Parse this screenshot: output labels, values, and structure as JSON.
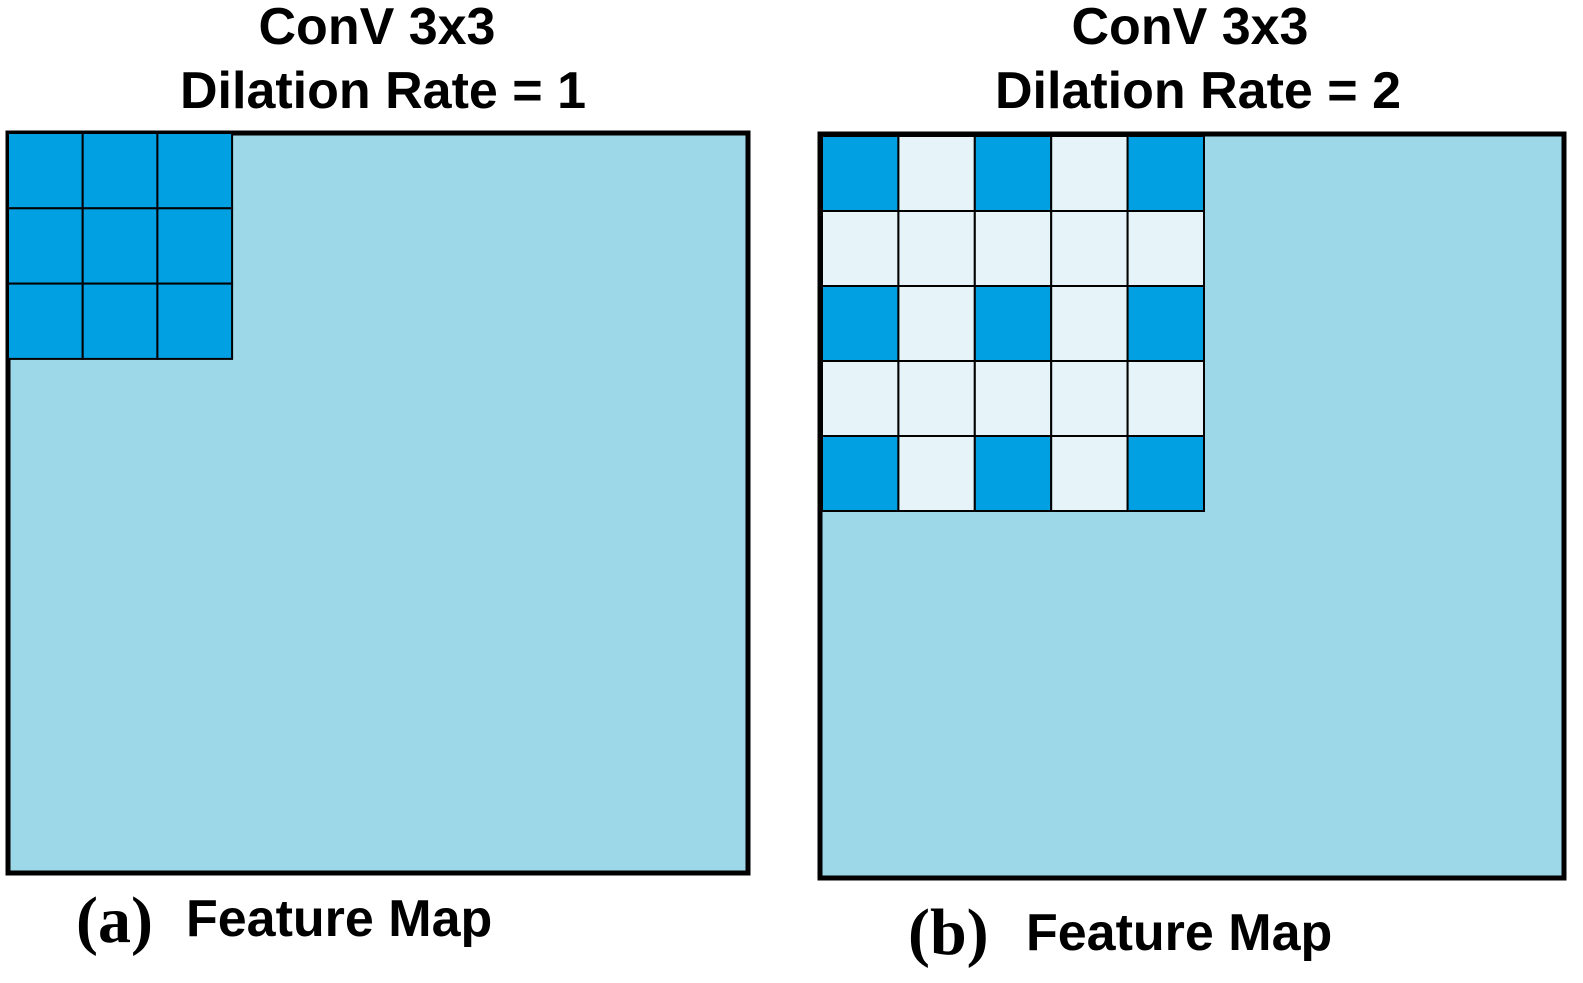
{
  "colors": {
    "feature_map": "#9dd8e9",
    "kernel_active": "#00a0e3",
    "kernel_inactive": "#e6f4fa",
    "outline": "#000000"
  },
  "panels": [
    {
      "title_line1": "ConV 3x3",
      "title_line2": "Dilation Rate = 1",
      "caption_letter": "(a)",
      "caption_text": "Feature Map",
      "dilation_rate": 1,
      "kernel_size": 3
    },
    {
      "title_line1": "ConV 3x3",
      "title_line2": "Dilation Rate = 2",
      "caption_letter": "(b)",
      "caption_text": "Feature Map",
      "dilation_rate": 2,
      "kernel_size": 3
    }
  ]
}
